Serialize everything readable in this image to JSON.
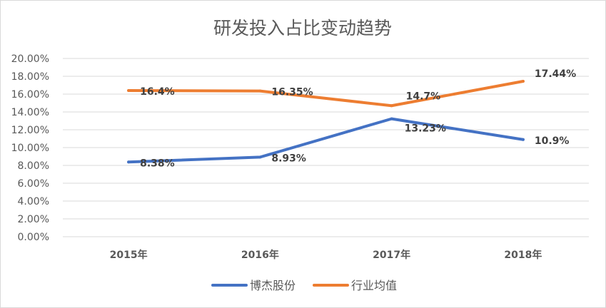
{
  "chart_data": {
    "type": "line",
    "title": "研发投入占比变动趋势",
    "categories": [
      "2015年",
      "2016年",
      "2017年",
      "2018年"
    ],
    "yticks": [
      "0.00%",
      "2.00%",
      "4.00%",
      "6.00%",
      "8.00%",
      "10.00%",
      "12.00%",
      "14.00%",
      "16.00%",
      "18.00%",
      "20.00%"
    ],
    "ylim": [
      0,
      20
    ],
    "grid": true,
    "legend_position": "bottom",
    "series": [
      {
        "name": "博杰股份",
        "color": "#4472C4",
        "values": [
          8.38,
          8.93,
          13.23,
          10.9
        ],
        "labels": [
          "8.38%",
          "8.93%",
          "13.23%",
          "10.9%"
        ]
      },
      {
        "name": "行业均值",
        "color": "#ED7D31",
        "values": [
          16.4,
          16.35,
          14.7,
          17.44
        ],
        "labels": [
          "16.4%",
          "16.35%",
          "14.7%",
          "17.44%"
        ]
      }
    ]
  }
}
